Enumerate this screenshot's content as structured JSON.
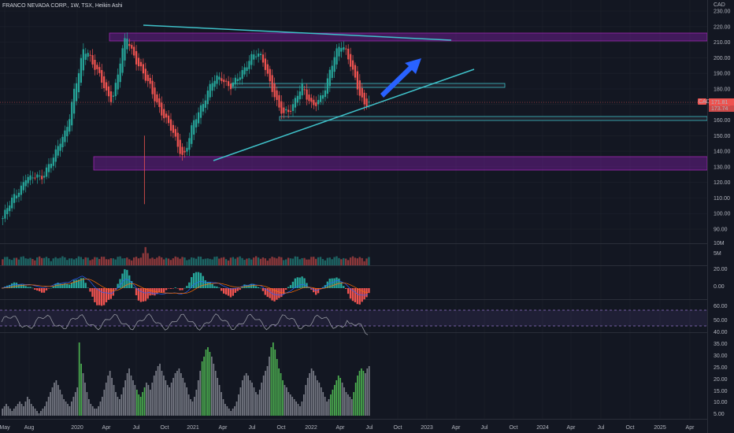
{
  "header": {
    "symbol_line": "FRANCO NEVADA CORP., 1W, TSX, Heikin Ashi",
    "currency": "CAD"
  },
  "colors": {
    "background": "#131722",
    "grid": "#1e222d",
    "up": "#26a69a",
    "down": "#ef5350",
    "trendline": "#3fc1c9",
    "zone_fill": "#7b1fa2",
    "arrow": "#2962ff",
    "stoch_band": "#9575cd",
    "hist_gray": "#787b86",
    "hist_green": "#4caf50"
  },
  "price_axis": {
    "ticks": [
      "230.00",
      "220.00",
      "210.00",
      "200.00",
      "190.00",
      "180.00",
      "170.00",
      "160.00",
      "150.00",
      "140.00",
      "130.00",
      "120.00",
      "110.00",
      "100.00",
      "90.00"
    ],
    "current_badge": "CAD",
    "current_price": "171.81",
    "current_sub": "173.74"
  },
  "time_axis": {
    "ticks": [
      "May",
      "Aug",
      "2020",
      "Apr",
      "Jul",
      "Oct",
      "2021",
      "Apr",
      "Jul",
      "Oct",
      "2022",
      "Apr",
      "Jul",
      "Oct",
      "2023",
      "Apr",
      "Jul",
      "Oct",
      "2024",
      "Apr",
      "Jul",
      "Oct",
      "2025",
      "Apr"
    ]
  },
  "volume_axis": {
    "ticks": [
      "10M",
      "5M"
    ]
  },
  "macd_axis": {
    "ticks": [
      "20.00",
      "0.00",
      "-20.00"
    ]
  },
  "stoch_axis": {
    "ticks": [
      "60.00",
      "50.00",
      "40.00"
    ]
  },
  "adx_axis": {
    "ticks": [
      "35.00",
      "30.00",
      "25.00",
      "20.00",
      "15.00",
      "10.00",
      "5.00",
      "0.00"
    ]
  },
  "chart_data": {
    "type": "candlestick",
    "chart_style": "Heikin Ashi",
    "interval": "1W",
    "exchange": "TSX",
    "ylim": [
      85,
      232
    ],
    "close_path": [
      97,
      103,
      109,
      114,
      118,
      124,
      121,
      125,
      123,
      128,
      132,
      137,
      146,
      152,
      162,
      178,
      190,
      206,
      204,
      196,
      190,
      183,
      176,
      174,
      186,
      202,
      214,
      206,
      199,
      193,
      186,
      181,
      174,
      168,
      161,
      156,
      150,
      143,
      136,
      146,
      157,
      164,
      171,
      178,
      184,
      186,
      187,
      184,
      182,
      185,
      188,
      194,
      201,
      203,
      201,
      195,
      186,
      178,
      168,
      163,
      165,
      170,
      178,
      182,
      173,
      169,
      172,
      176,
      181,
      193,
      203,
      210,
      206,
      196,
      186,
      177,
      171,
      172
    ],
    "upper_resistance_zone": [
      209,
      216
    ],
    "mid_zone": [
      181,
      183
    ],
    "support_zone": [
      159,
      161
    ],
    "lower_demand_zone": [
      127,
      136
    ],
    "descending_trendline": {
      "from": [
        "Jul 2020",
        222
      ],
      "to": [
        "Apr 2023",
        212
      ]
    },
    "ascending_trendline": {
      "from": [
        "Feb 2021",
        135
      ],
      "to": [
        "Aug 2023",
        194
      ]
    },
    "projection_arrow": "up-right",
    "volume_ylim": [
      0,
      14
    ],
    "macd_ylim": [
      -25,
      25
    ],
    "stoch_ylim": [
      35,
      65
    ],
    "stoch_band": [
      40,
      55
    ],
    "adx_ylim": [
      0,
      35
    ],
    "adx_values": [
      3,
      4,
      5,
      4,
      3,
      2,
      3,
      4,
      5,
      6,
      5,
      4,
      6,
      8,
      7,
      5,
      4,
      3,
      2,
      1,
      2,
      3,
      4,
      6,
      8,
      10,
      12,
      14,
      15,
      13,
      11,
      9,
      7,
      6,
      5,
      4,
      6,
      8,
      10,
      12,
      31,
      22,
      18,
      14,
      10,
      7,
      5,
      4,
      3,
      3,
      4,
      6,
      8,
      11,
      14,
      17,
      19,
      16,
      13,
      10,
      8,
      7,
      9,
      12,
      15,
      18,
      20,
      17,
      15,
      13,
      11,
      9,
      8,
      10,
      12,
      14,
      13,
      11,
      14,
      17,
      19,
      21,
      22,
      19,
      17,
      15,
      13,
      12,
      14,
      16,
      18,
      19,
      20,
      18,
      16,
      14,
      12,
      9,
      7,
      6,
      8,
      11,
      15,
      19,
      23,
      25,
      28,
      29,
      27,
      25,
      22,
      19,
      16,
      13,
      10,
      7,
      5,
      4,
      3,
      2,
      3,
      4,
      6,
      9,
      12,
      15,
      17,
      18,
      17,
      15,
      14,
      12,
      10,
      9,
      11,
      14,
      17,
      19,
      21,
      25,
      29,
      31,
      28,
      24,
      20,
      18,
      15,
      13,
      12,
      10,
      9,
      8,
      7,
      6,
      5,
      4,
      6,
      9,
      13,
      16,
      18,
      20,
      19,
      17,
      15,
      14,
      12,
      10,
      8,
      6,
      7,
      9,
      11,
      13,
      15,
      17,
      16,
      14,
      12,
      10,
      9,
      8,
      7,
      10,
      14,
      17,
      19,
      20,
      19,
      18,
      20,
      21
    ]
  }
}
